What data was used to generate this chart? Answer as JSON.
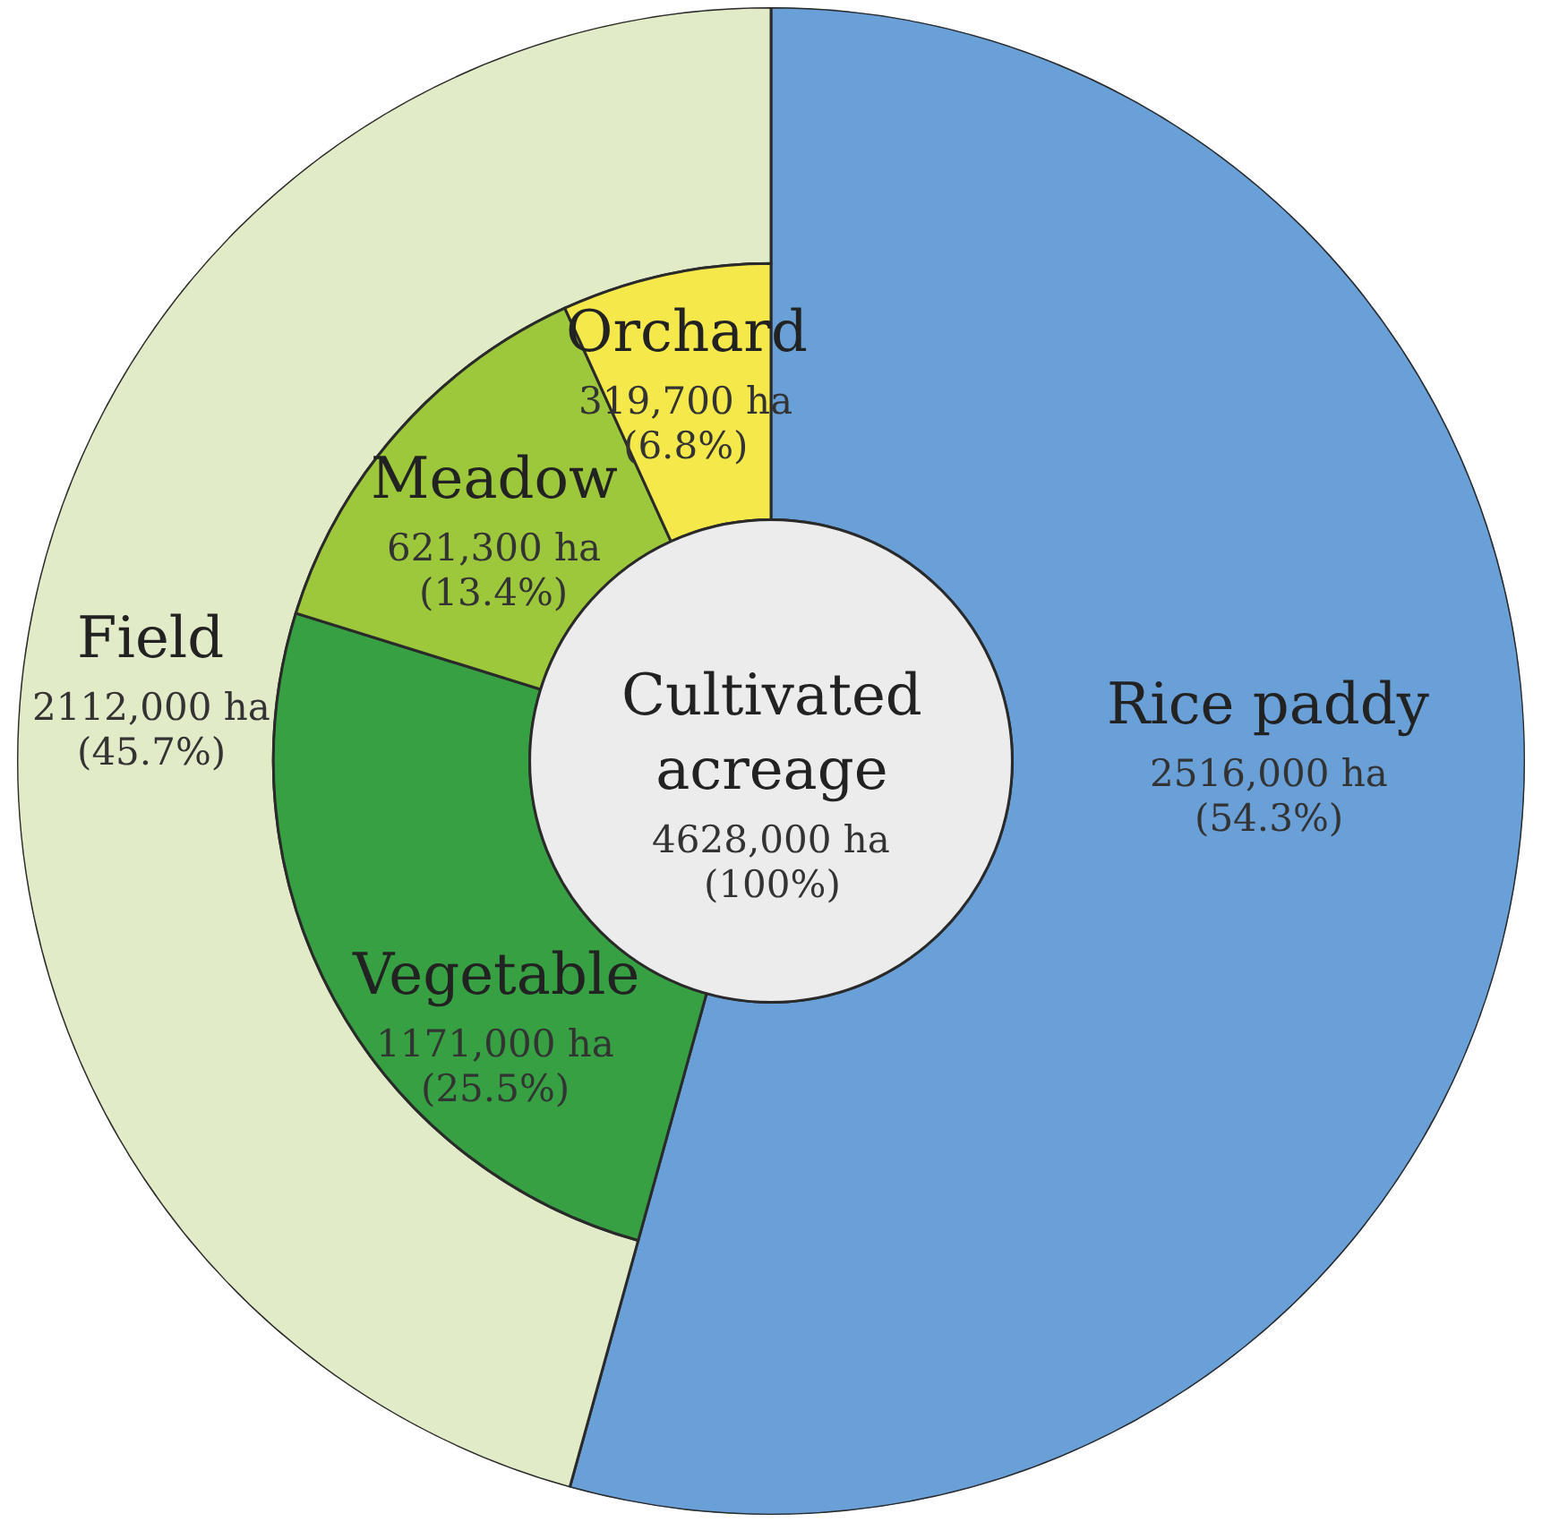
{
  "chart_data": [
    {
      "type": "donut",
      "categories": [
        "Rice paddy",
        "Field"
      ],
      "values": [
        54.3,
        45.7
      ],
      "colors": [
        "#6aa0d8",
        "#e2ebc8"
      ],
      "value_labels": [
        "2516,000 ha\n(54.3%)",
        "2112,000 ha\n(45.7%)"
      ]
    },
    {
      "type": "donut",
      "categories": [
        "Vegetable",
        "Meadow",
        "Orchard"
      ],
      "values": [
        25.5,
        13.4,
        6.8
      ],
      "colors": [
        "#36a043",
        "#9dc83b",
        "#f4e84a"
      ],
      "value_labels": [
        "1171,000 ha\n(25.5%)",
        "621,300 ha\n(13.4%)",
        "319,700 ha\n(6.8%)"
      ]
    },
    {
      "type": "pie",
      "categories": [
        "Cultivated acreage"
      ],
      "values": [
        100
      ],
      "colors": [
        "#ececec"
      ],
      "value_labels": [
        "4628,000 ha\n(100%)"
      ]
    }
  ]
}
